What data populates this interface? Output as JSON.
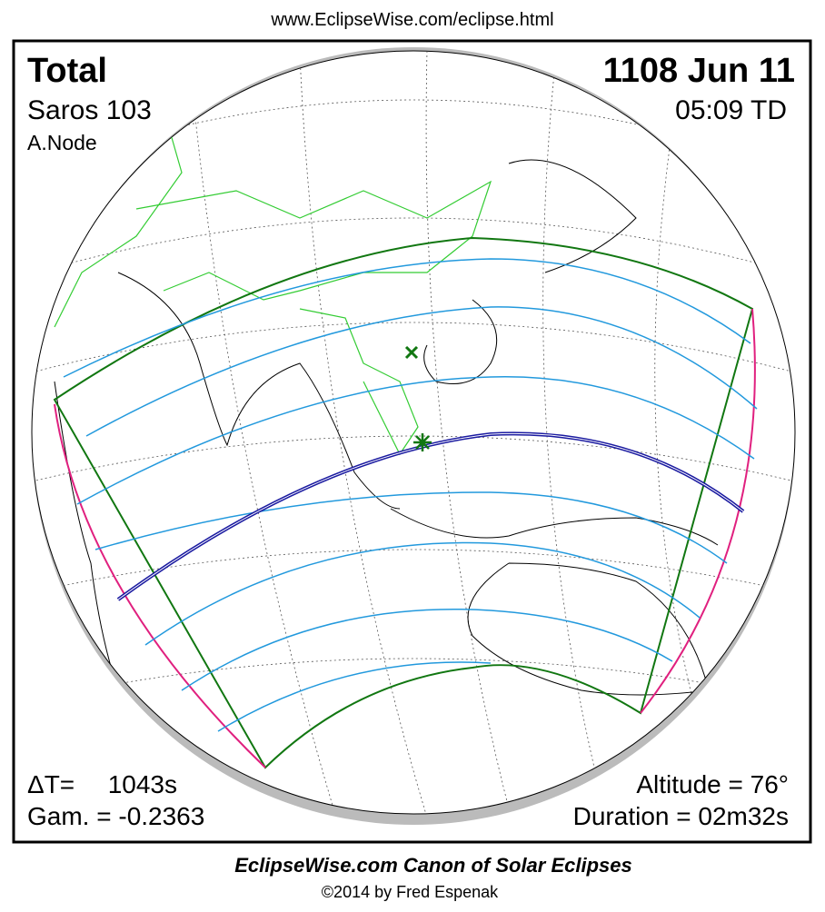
{
  "header": {
    "url": "www.EclipseWise.com/eclipse.html"
  },
  "eclipse": {
    "type": "Total",
    "date": "1108 Jun 11",
    "saros": "Saros 103",
    "time": "05:09 TD",
    "node": "A.Node",
    "delta_t_label": "ΔT=",
    "delta_t": "1043s",
    "gamma": "Gam. = -0.2363",
    "altitude": "Altitude = 76°",
    "duration": "Duration = 02m32s"
  },
  "footer": {
    "title": "EclipseWise.com Canon of Solar Eclipses",
    "copyright": "©2014 by Fred Espenak"
  }
}
